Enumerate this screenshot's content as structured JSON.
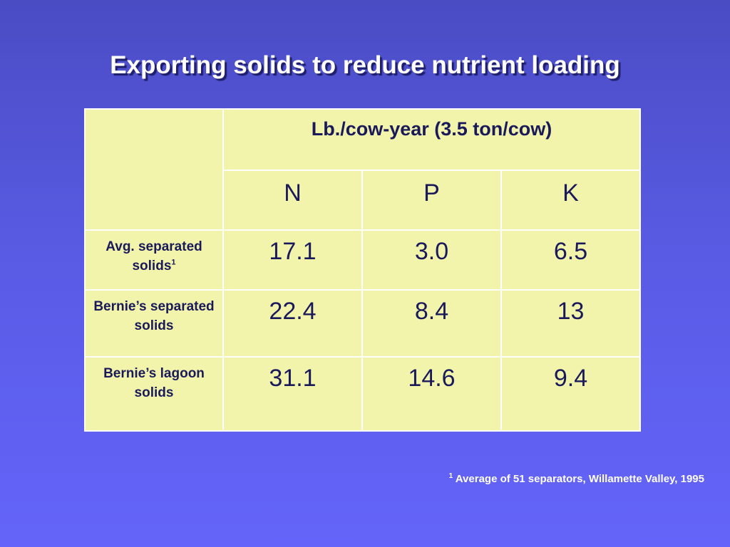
{
  "title": "Exporting solids to reduce nutrient loading",
  "table": {
    "unit_header": "Lb./cow-year (3.5 ton/cow)",
    "columns": [
      "N",
      "P",
      "K"
    ],
    "rows": [
      {
        "label": "Avg. separated solids",
        "footnote_mark": "1",
        "values": [
          "17.1",
          "3.0",
          "6.5"
        ]
      },
      {
        "label": "Bernie’s separated solids",
        "footnote_mark": "",
        "values": [
          "22.4",
          "8.4",
          "13"
        ]
      },
      {
        "label": "Bernie’s lagoon solids",
        "footnote_mark": "",
        "values": [
          "31.1",
          "14.6",
          "9.4"
        ]
      }
    ]
  },
  "footnote": {
    "mark": "1",
    "text": "Average of 51 separators, Willamette Valley, 1995"
  }
}
